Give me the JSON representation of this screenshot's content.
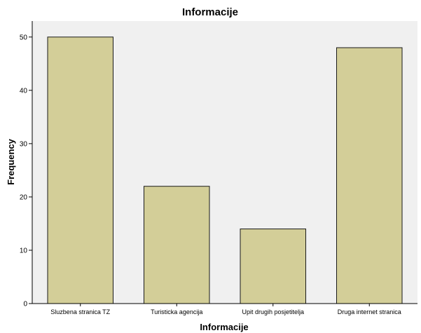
{
  "chart_data": {
    "type": "bar",
    "title": "Informacije",
    "xlabel": "Informacije",
    "ylabel": "Frequency",
    "categories": [
      "Sluzbena stranica TZ",
      "Turisticka agencija",
      "Upit drugih posjetitelja",
      "Druga internet stranica"
    ],
    "values": [
      50,
      22,
      14,
      48
    ],
    "ylim": [
      0,
      53
    ],
    "yticks": [
      0,
      10,
      20,
      30,
      40,
      50
    ],
    "grid": false,
    "legend": "none",
    "colors": {
      "bar_fill": "#d3ce98",
      "bar_stroke": "#1a1a1a",
      "plot_background": "#f0f0f0",
      "axis": "#000000"
    }
  }
}
